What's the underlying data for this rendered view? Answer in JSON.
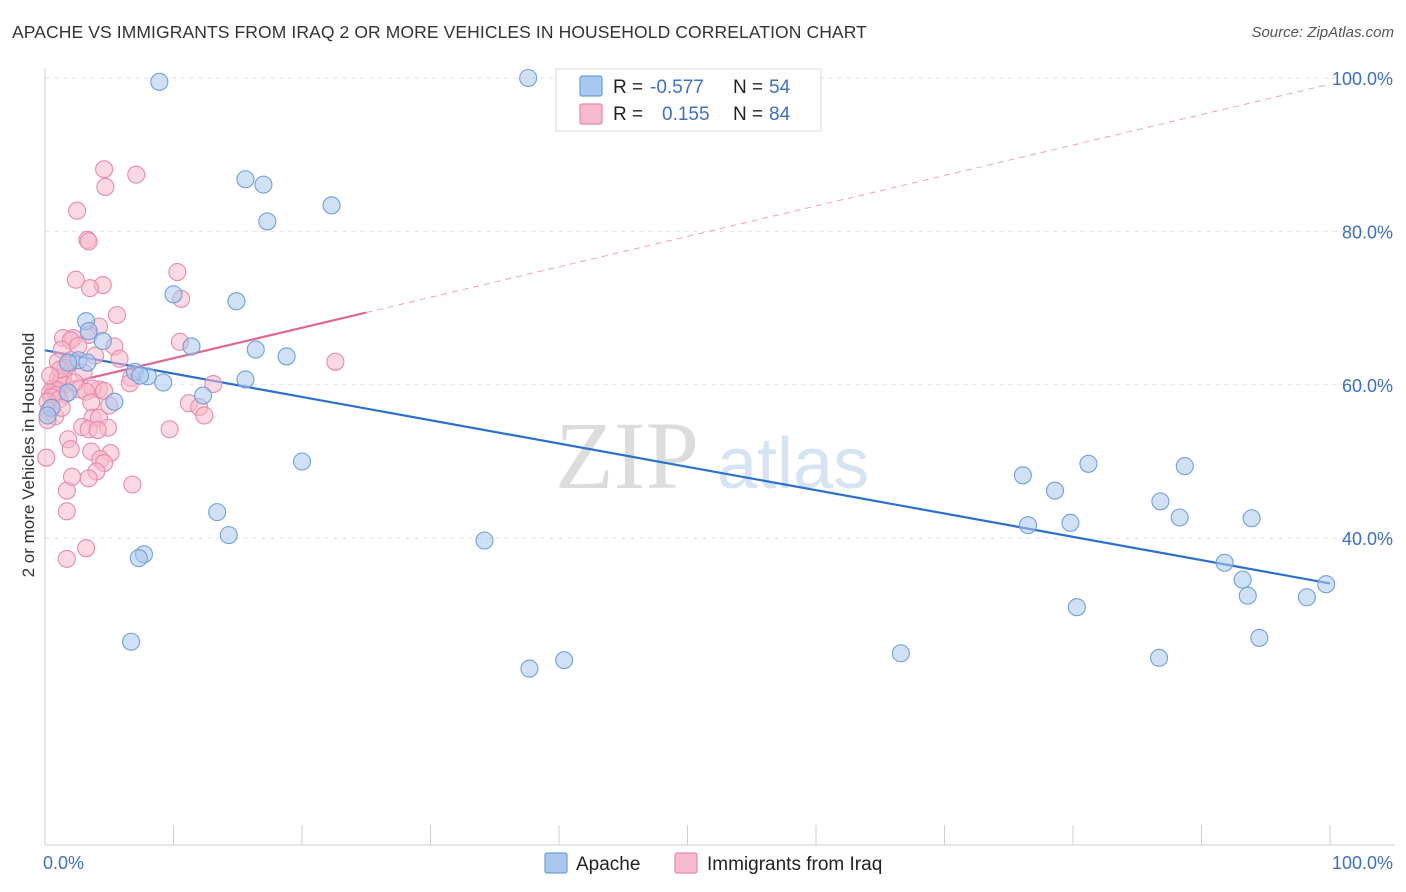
{
  "title": "APACHE VS IMMIGRANTS FROM IRAQ 2 OR MORE VEHICLES IN HOUSEHOLD CORRELATION CHART",
  "source": "Source: ZipAtlas.com",
  "watermark": {
    "zip": "ZIP",
    "atlas": "atlas"
  },
  "legend_box": {
    "rows": [
      {
        "r_label": "R =",
        "r_value": "-0.577",
        "n_label": "N =",
        "n_value": "54"
      },
      {
        "r_label": "R =",
        "r_value": "0.155",
        "n_label": "N =",
        "n_value": "84"
      }
    ]
  },
  "colors": {
    "apache_fill": "#a9c8ef",
    "apache_stroke": "#6f9fd8",
    "apache_line": "#2b6fcf",
    "iraq_fill": "#f7b9cc",
    "iraq_stroke": "#e88aa8",
    "iraq_line": "#e0668f",
    "axis_text": "#3d6fc4",
    "grid": "#e4e4e4"
  },
  "chart_data": {
    "type": "scatter",
    "xlabel": "",
    "ylabel": "2 or more Vehicles in Household",
    "xlim": [
      0,
      100
    ],
    "ylim": [
      0,
      100
    ],
    "x_ticks": [
      "0.0%",
      "100.0%"
    ],
    "y_ticks": [
      "40.0%",
      "60.0%",
      "80.0%",
      "100.0%"
    ],
    "y_tick_values": [
      40,
      60,
      80,
      100
    ],
    "grid": true,
    "legend": "bottom-center",
    "series": [
      {
        "name": "Apache",
        "r": -0.577,
        "n": 54,
        "trend": {
          "x": [
            0,
            100
          ],
          "y": [
            64.5,
            34.1
          ],
          "solid_to": 100
        },
        "points": [
          [
            8.9,
            99.5
          ],
          [
            37.6,
            100.0
          ],
          [
            15.6,
            86.8
          ],
          [
            17.0,
            86.1
          ],
          [
            22.3,
            83.4
          ],
          [
            17.3,
            81.3
          ],
          [
            10.0,
            71.8
          ],
          [
            14.9,
            70.9
          ],
          [
            3.2,
            68.3
          ],
          [
            3.4,
            67.0
          ],
          [
            4.5,
            65.7
          ],
          [
            11.4,
            65.0
          ],
          [
            16.4,
            64.6
          ],
          [
            18.8,
            63.7
          ],
          [
            2.6,
            63.2
          ],
          [
            1.8,
            62.9
          ],
          [
            3.3,
            62.9
          ],
          [
            7.0,
            61.7
          ],
          [
            8.0,
            61.1
          ],
          [
            7.4,
            61.2
          ],
          [
            9.2,
            60.3
          ],
          [
            15.6,
            60.7
          ],
          [
            12.3,
            58.6
          ],
          [
            5.4,
            57.8
          ],
          [
            0.5,
            57.0
          ],
          [
            0.2,
            56.0
          ],
          [
            20.0,
            50.0
          ],
          [
            13.4,
            43.4
          ],
          [
            14.3,
            40.4
          ],
          [
            34.2,
            39.7
          ],
          [
            7.7,
            37.9
          ],
          [
            7.3,
            37.4
          ],
          [
            6.7,
            26.5
          ],
          [
            37.7,
            23.0
          ],
          [
            40.4,
            24.1
          ],
          [
            81.2,
            49.7
          ],
          [
            88.7,
            49.4
          ],
          [
            76.1,
            48.2
          ],
          [
            78.6,
            46.2
          ],
          [
            86.8,
            44.8
          ],
          [
            79.8,
            42.0
          ],
          [
            88.3,
            42.7
          ],
          [
            93.9,
            42.6
          ],
          [
            76.5,
            41.7
          ],
          [
            91.8,
            36.8
          ],
          [
            93.2,
            34.6
          ],
          [
            99.7,
            34.0
          ],
          [
            93.6,
            32.5
          ],
          [
            98.2,
            32.3
          ],
          [
            80.3,
            31.0
          ],
          [
            94.5,
            27.0
          ],
          [
            86.7,
            24.4
          ],
          [
            66.6,
            25.0
          ],
          [
            1.8,
            59.0
          ]
        ]
      },
      {
        "name": "Immigrants from Iraq",
        "r": 0.155,
        "n": 84,
        "trend": {
          "x": [
            0,
            100
          ],
          "y": [
            59.5,
            99.2
          ],
          "solid_to": 25
        },
        "points": [
          [
            4.6,
            88.1
          ],
          [
            7.1,
            87.4
          ],
          [
            4.7,
            85.8
          ],
          [
            2.5,
            82.7
          ],
          [
            3.3,
            78.9
          ],
          [
            3.4,
            78.7
          ],
          [
            10.3,
            74.7
          ],
          [
            2.4,
            73.7
          ],
          [
            4.5,
            73.0
          ],
          [
            3.5,
            72.6
          ],
          [
            10.6,
            71.2
          ],
          [
            5.6,
            69.1
          ],
          [
            4.2,
            67.6
          ],
          [
            3.4,
            66.5
          ],
          [
            1.4,
            66.1
          ],
          [
            2.2,
            66.1
          ],
          [
            2.0,
            65.8
          ],
          [
            10.5,
            65.6
          ],
          [
            2.6,
            65.1
          ],
          [
            5.4,
            65.0
          ],
          [
            1.3,
            64.6
          ],
          [
            2.0,
            63.2
          ],
          [
            5.8,
            63.4
          ],
          [
            22.6,
            63.0
          ],
          [
            1.0,
            63.0
          ],
          [
            1.8,
            62.6
          ],
          [
            1.6,
            62.2
          ],
          [
            3.0,
            61.6
          ],
          [
            1.4,
            61.1
          ],
          [
            1.0,
            60.8
          ],
          [
            6.7,
            60.9
          ],
          [
            6.6,
            60.2
          ],
          [
            13.1,
            60.1
          ],
          [
            1.2,
            60.4
          ],
          [
            1.5,
            60.0
          ],
          [
            0.6,
            59.5
          ],
          [
            0.8,
            59.3
          ],
          [
            1.0,
            59.3
          ],
          [
            2.7,
            59.4
          ],
          [
            4.2,
            59.4
          ],
          [
            3.7,
            59.5
          ],
          [
            4.6,
            59.2
          ],
          [
            0.4,
            59.0
          ],
          [
            3.2,
            59.1
          ],
          [
            1.6,
            58.8
          ],
          [
            0.9,
            58.7
          ],
          [
            0.5,
            58.4
          ],
          [
            1.1,
            58.1
          ],
          [
            0.2,
            57.8
          ],
          [
            11.2,
            57.6
          ],
          [
            3.6,
            57.7
          ],
          [
            0.3,
            56.6
          ],
          [
            12.0,
            57.1
          ],
          [
            12.4,
            56.0
          ],
          [
            0.8,
            55.9
          ],
          [
            0.2,
            55.4
          ],
          [
            3.7,
            55.7
          ],
          [
            4.2,
            55.7
          ],
          [
            2.9,
            54.5
          ],
          [
            4.9,
            54.4
          ],
          [
            3.4,
            54.2
          ],
          [
            4.1,
            54.1
          ],
          [
            9.7,
            54.2
          ],
          [
            1.8,
            52.9
          ],
          [
            2.0,
            51.6
          ],
          [
            3.6,
            51.3
          ],
          [
            5.1,
            51.1
          ],
          [
            4.3,
            50.3
          ],
          [
            4.6,
            49.8
          ],
          [
            4.0,
            48.7
          ],
          [
            3.4,
            47.8
          ],
          [
            1.7,
            46.2
          ],
          [
            1.7,
            43.5
          ],
          [
            3.2,
            38.7
          ],
          [
            1.7,
            37.3
          ],
          [
            0.1,
            50.5
          ],
          [
            2.1,
            48.0
          ],
          [
            6.8,
            47.0
          ],
          [
            1.2,
            62.0
          ],
          [
            3.9,
            63.8
          ],
          [
            0.4,
            61.2
          ],
          [
            2.3,
            60.3
          ],
          [
            5.0,
            57.3
          ],
          [
            1.3,
            57.0
          ]
        ]
      }
    ]
  }
}
